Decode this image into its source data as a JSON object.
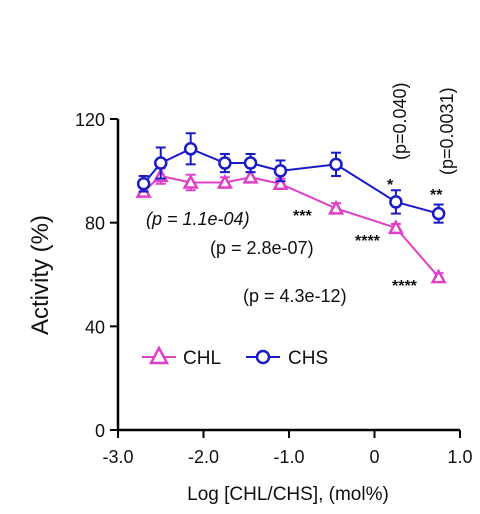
{
  "chart_data": {
    "type": "line",
    "title": "",
    "xlabel": "Log [CHL/CHS], (mol%)",
    "ylabel": "Activity (%)",
    "xlim": [
      -3.0,
      1.0
    ],
    "ylim": [
      0,
      120
    ],
    "x_ticks": [
      -3.0,
      -2.0,
      -1.0,
      0,
      1.0
    ],
    "x_tick_labels": [
      "-3.0",
      "-2.0",
      "-1.0",
      "0",
      "1.0"
    ],
    "y_ticks": [
      0,
      40,
      80,
      120
    ],
    "y_tick_labels": [
      "0",
      "40",
      "80",
      "120"
    ],
    "grid": false,
    "legend_position": "lower-left",
    "series": [
      {
        "name": "CHL",
        "color": "#e040c8",
        "marker": "triangle-open",
        "points": [
          {
            "x": -2.7,
            "y": 92,
            "err": 1.5
          },
          {
            "x": -2.5,
            "y": 98,
            "err": 3
          },
          {
            "x": -2.15,
            "y": 95.5,
            "err": 3
          },
          {
            "x": -1.75,
            "y": 95.5,
            "err": 2
          },
          {
            "x": -1.45,
            "y": 97.5,
            "err": 2
          },
          {
            "x": -1.1,
            "y": 95,
            "err": 2
          },
          {
            "x": -0.45,
            "y": 85.5,
            "err": 2
          },
          {
            "x": 0.25,
            "y": 78,
            "err": 1.5
          },
          {
            "x": 0.75,
            "y": 59,
            "err": 1.5
          }
        ]
      },
      {
        "name": "CHS",
        "color": "#1a1ac8",
        "marker": "circle-open",
        "points": [
          {
            "x": -2.7,
            "y": 95,
            "err": 3
          },
          {
            "x": -2.5,
            "y": 103,
            "err": 6
          },
          {
            "x": -2.15,
            "y": 108.5,
            "err": 6
          },
          {
            "x": -1.75,
            "y": 103,
            "err": 3.5
          },
          {
            "x": -1.45,
            "y": 103,
            "err": 3.5
          },
          {
            "x": -1.1,
            "y": 100,
            "err": 4
          },
          {
            "x": -0.45,
            "y": 102.5,
            "err": 4.5
          },
          {
            "x": 0.25,
            "y": 88,
            "err": 4.5
          },
          {
            "x": 0.75,
            "y": 83.5,
            "err": 3.5
          }
        ]
      }
    ],
    "annotations": [
      {
        "text": "(p = 1.1e-04)",
        "stars": "***"
      },
      {
        "text": "(p = 2.8e-07)",
        "stars": "****"
      },
      {
        "text": "(p = 4.3e-12)",
        "stars": "****"
      },
      {
        "text": "(p=0.040)",
        "stars": "*"
      },
      {
        "text": "(p=0.0031)",
        "stars": "**"
      }
    ]
  }
}
